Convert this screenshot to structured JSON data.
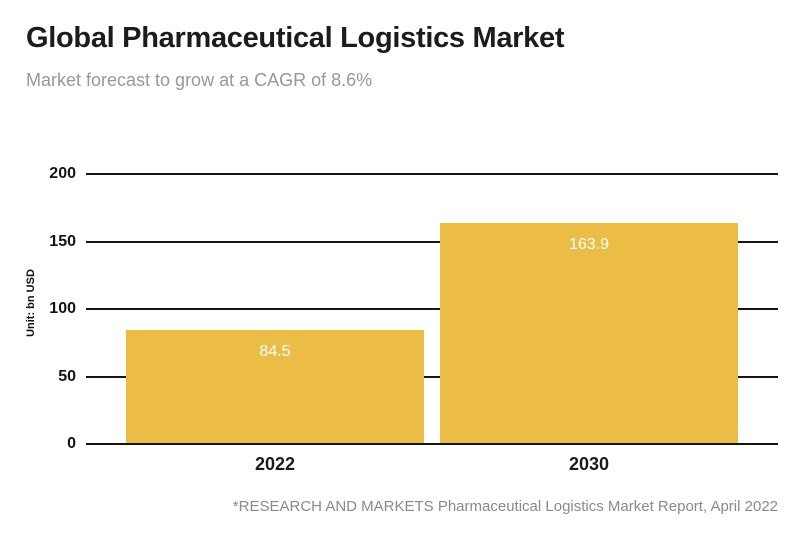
{
  "header": {
    "title": "Global Pharmaceutical Logistics Market",
    "subtitle": "Market forecast to grow at a CAGR of 8.6%"
  },
  "footer": {
    "source_note": "*RESEARCH AND MARKETS Pharmaceutical Logistics Market Report, April 2022"
  },
  "colors": {
    "bar": "#EBBD46",
    "gridline": "#151515",
    "title": "#1C1C1C",
    "subtitle": "#989898",
    "footer": "#8A8A8A",
    "bar_value_label": "#FFFFFF"
  },
  "chart_data": {
    "type": "bar",
    "title": "Global Pharmaceutical Logistics Market",
    "subtitle": "Market forecast to grow at a CAGR of 8.6%",
    "categories": [
      "2022",
      "2030"
    ],
    "values": [
      84.5,
      163.9
    ],
    "xlabel": "",
    "ylabel": "Unit: bn USD",
    "ylim": [
      0,
      200
    ],
    "yticks": [
      0,
      50,
      100,
      150,
      200
    ],
    "grid": true,
    "legend": false,
    "value_labels": [
      "84.5",
      "163.9"
    ],
    "annotation": "*RESEARCH AND MARKETS Pharmaceutical Logistics Market Report, April 2022"
  }
}
